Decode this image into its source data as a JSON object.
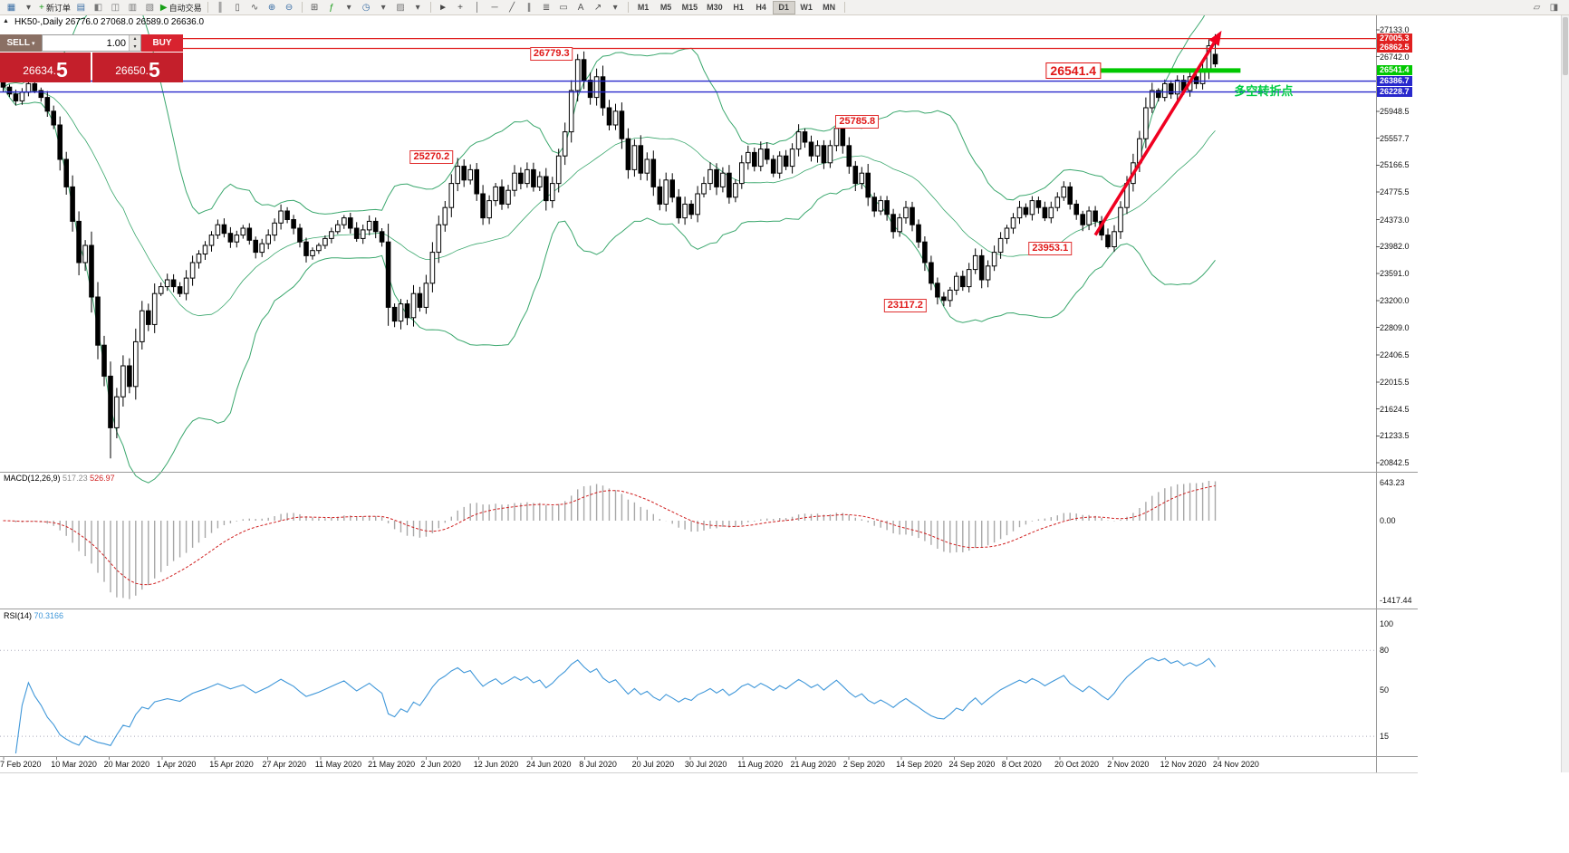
{
  "toolbar": {
    "timeframes": [
      "M1",
      "M5",
      "M15",
      "M30",
      "H1",
      "H4",
      "D1",
      "W1",
      "MN"
    ],
    "active_timeframe": "D1",
    "groups": [
      {
        "items": [
          {
            "name": "chart-window-icon",
            "glyph": "▦",
            "color": "#3a6ea5"
          },
          {
            "name": "chart-type-dropdown-icon",
            "glyph": "▾",
            "color": "#555"
          },
          {
            "name": "new-order-button",
            "glyph": "+",
            "color": "#1a9c1a",
            "label": "新订单"
          },
          {
            "name": "market-watch-icon",
            "glyph": "▤",
            "color": "#3a6ea5"
          },
          {
            "name": "data-window-icon",
            "glyph": "◧",
            "color": "#777"
          },
          {
            "name": "navigator-icon",
            "glyph": "◫",
            "color": "#777"
          },
          {
            "name": "terminal-icon",
            "glyph": "▥",
            "color": "#777"
          },
          {
            "name": "strategy-tester-icon",
            "glyph": "▧",
            "color": "#777"
          },
          {
            "name": "autotrade-button",
            "glyph": "▶",
            "color": "#18a018",
            "label": "自动交易"
          }
        ]
      },
      {
        "items": [
          {
            "name": "bar-chart-icon",
            "glyph": "║",
            "color": "#555"
          },
          {
            "name": "candlestick-icon",
            "glyph": "▯",
            "color": "#555"
          },
          {
            "name": "line-chart-icon",
            "glyph": "∿",
            "color": "#555"
          },
          {
            "name": "zoom-in-icon",
            "glyph": "⊕",
            "color": "#3a6ea5"
          },
          {
            "name": "zoom-out-icon",
            "glyph": "⊖",
            "color": "#3a6ea5"
          }
        ]
      },
      {
        "items": [
          {
            "name": "tile-windows-icon",
            "glyph": "⊞",
            "color": "#555"
          },
          {
            "name": "indicators-icon",
            "glyph": "ƒ",
            "color": "#1a9c1a"
          },
          {
            "name": "indicators-dropdown-icon",
            "glyph": "▾",
            "color": "#555"
          },
          {
            "name": "periods-icon",
            "glyph": "◷",
            "color": "#3a6ea5"
          },
          {
            "name": "periods-dropdown-icon",
            "glyph": "▾",
            "color": "#555"
          },
          {
            "name": "templates-icon",
            "glyph": "▨",
            "color": "#777"
          },
          {
            "name": "templates-dropdown-icon",
            "glyph": "▾",
            "color": "#555"
          }
        ]
      },
      {
        "items": [
          {
            "name": "cursor-icon",
            "glyph": "►",
            "color": "#444"
          },
          {
            "name": "crosshair-icon",
            "glyph": "+",
            "color": "#444"
          },
          {
            "name": "vertical-line-icon",
            "glyph": "│",
            "color": "#555"
          },
          {
            "name": "horizontal-line-icon",
            "glyph": "─",
            "color": "#555"
          },
          {
            "name": "trendline-icon",
            "glyph": "╱",
            "color": "#555"
          },
          {
            "name": "channel-icon",
            "glyph": "∥",
            "color": "#555"
          },
          {
            "name": "fibonacci-icon",
            "glyph": "≣",
            "color": "#555"
          },
          {
            "name": "shapes-icon",
            "glyph": "▭",
            "color": "#555"
          },
          {
            "name": "text-icon",
            "glyph": "A",
            "color": "#555"
          },
          {
            "name": "arrows-icon",
            "glyph": "↗",
            "color": "#555"
          },
          {
            "name": "arrows-dropdown-icon",
            "glyph": "▾",
            "color": "#555"
          }
        ]
      },
      {
        "tf": true,
        "items": []
      },
      {
        "align": "right",
        "items": [
          {
            "name": "chart-edit-icon",
            "glyph": "▱",
            "color": "#666"
          },
          {
            "name": "panel-layout-icon",
            "glyph": "◨",
            "color": "#666"
          }
        ]
      }
    ]
  },
  "trade_panel": {
    "sell_label": "SELL",
    "buy_label": "BUY",
    "volume": "1.00",
    "sell_caret": "▾",
    "spin_up": "▴",
    "spin_down": "▾",
    "sell_price_main": "26634.",
    "sell_price_big": "5",
    "buy_price_main": "26650.",
    "buy_price_big": "5"
  },
  "chart": {
    "symbol_label": "HK50-,Daily  26776.0 27068.0 26589.0 26636.0",
    "panel_toggle_glyph": "▲"
  },
  "chart_data": {
    "type": "candlestick",
    "symbol": "HK50",
    "period": "Daily",
    "quote": {
      "open": 26776.0,
      "high": 27068.0,
      "low": 26589.0,
      "close": 26636.0
    },
    "closes": [
      26300,
      26200,
      26100,
      26225,
      26350,
      26250,
      26150,
      25950,
      25750,
      25250,
      24850,
      24350,
      23750,
      24000,
      23250,
      22550,
      22100,
      21350,
      21800,
      22250,
      21950,
      22600,
      23050,
      22850,
      23300,
      23400,
      23500,
      23400,
      23300,
      23525,
      23750,
      23875,
      24000,
      24150,
      24300,
      24175,
      24050,
      24150,
      24250,
      24075,
      23900,
      24025,
      24150,
      24325,
      24500,
      24375,
      24250,
      24050,
      23850,
      23925,
      24000,
      24100,
      24200,
      24300,
      24400,
      24250,
      24100,
      24225,
      24350,
      24200,
      24050,
      23100,
      22900,
      23150,
      22950,
      23300,
      23100,
      23450,
      23900,
      24300,
      24550,
      24900,
      25150,
      24950,
      25100,
      24750,
      24400,
      24650,
      24850,
      24600,
      24800,
      25050,
      24900,
      25100,
      24850,
      25000,
      24650,
      24900,
      25300,
      25650,
      26250,
      26700,
      26400,
      26150,
      26450,
      26000,
      25750,
      25950,
      25550,
      25100,
      25450,
      25050,
      25250,
      24850,
      24600,
      24950,
      24700,
      24400,
      24600,
      24450,
      24750,
      24900,
      25100,
      24850,
      25050,
      24700,
      24900,
      25200,
      25350,
      25150,
      25400,
      25250,
      25050,
      25300,
      25150,
      25400,
      25650,
      25500,
      25300,
      25450,
      25200,
      25450,
      25700,
      25450,
      25150,
      24900,
      25050,
      24700,
      24500,
      24650,
      24450,
      24200,
      24400,
      24550,
      24300,
      24050,
      23750,
      23450,
      23250,
      23200,
      23350,
      23550,
      23400,
      23650,
      23850,
      23500,
      23700,
      23900,
      24100,
      24250,
      24400,
      24550,
      24450,
      24650,
      24550,
      24400,
      24550,
      24700,
      24850,
      24600,
      24450,
      24300,
      24500,
      24350,
      24150,
      23980,
      24200,
      24550,
      24900,
      25200,
      25550,
      26000,
      26250,
      26150,
      26350,
      26200,
      26400,
      26250,
      26450,
      26350,
      26550,
      26900,
      26636
    ],
    "wick_overrides": {
      "17": {
        "low": 20905
      },
      "91": {
        "high": 26779.3
      },
      "132": {
        "high": 25785.8
      },
      "149": {
        "low": 23117.2
      },
      "175": {
        "low": 23953.1
      },
      "191": {
        "high": 26995
      }
    },
    "price_axis": {
      "labels": [
        "27133.0",
        "26742.0",
        "25948.5",
        "25557.7",
        "25166.5",
        "24775.5",
        "24373.0",
        "23982.0",
        "23591.0",
        "23200.0",
        "22809.0",
        "22406.5",
        "22015.5",
        "21624.5",
        "21233.5",
        "20842.5"
      ]
    },
    "levels": [
      {
        "label": "27005.3",
        "price": 27005.3,
        "color": "#e02020",
        "style": "line",
        "width": 1.2
      },
      {
        "label": "26862.5",
        "price": 26862.5,
        "color": "#e02020",
        "style": "line",
        "width": 1.2
      },
      {
        "label": "26541.4",
        "price": 26541.4,
        "color": "#00c800",
        "style": "segment",
        "from_index": 174,
        "to_index": 196.5,
        "width": 5
      },
      {
        "label": "26386.7",
        "price": 26386.7,
        "color": "#2828cc",
        "style": "line",
        "width": 1.4
      },
      {
        "label": "26228.7",
        "price": 26228.7,
        "color": "#2828cc",
        "style": "line",
        "width": 1.4
      }
    ],
    "annotations": [
      {
        "text": "26779.3",
        "price": 26779.3,
        "index": 91,
        "side": "left"
      },
      {
        "text": "25270.2",
        "price": 25270.2,
        "index": 72,
        "side": "left"
      },
      {
        "text": "25785.8",
        "price": 25785.8,
        "index": 131,
        "side": "right"
      },
      {
        "text": "23953.1",
        "price": 23953.1,
        "index": 170,
        "side": "left"
      },
      {
        "text": "23117.2",
        "price": 23117.2,
        "index": 147,
        "side": "left"
      }
    ],
    "level_callout": {
      "text": "26541.4",
      "price": 26541.4,
      "index": 175,
      "side": "left"
    },
    "trend_arrow": {
      "from": {
        "index": 173,
        "price": 24150
      },
      "to": {
        "index": 193,
        "price": 27120
      },
      "color": "#f00020",
      "width": 3.5
    },
    "note": {
      "text": "多空转折点",
      "index": 195,
      "price": 26270,
      "color": "#00cc44"
    },
    "macd": {
      "label": "MACD(12,26,9)",
      "value_main": "517.23",
      "value_signal": "526.97",
      "axis_labels": [
        "643.23",
        "0.00",
        "-1417.44"
      ],
      "histogram_color": "#a8a8a8",
      "signal_color": "#d02020"
    },
    "rsi": {
      "label": "RSI(14)",
      "value": "70.3166",
      "axis_labels": [
        "100",
        "80",
        "50",
        "15"
      ],
      "level_lines": [
        80,
        15
      ],
      "line_color": "#3f97d9"
    },
    "dates": [
      "7 Feb 2020",
      "10 Mar 2020",
      "20 Mar 2020",
      "1 Apr 2020",
      "15 Apr 2020",
      "27 Apr 2020",
      "11 May 2020",
      "21 May 2020",
      "2 Jun 2020",
      "12 Jun 2020",
      "24 Jun 2020",
      "8 Jul 2020",
      "20 Jul 2020",
      "30 Jul 2020",
      "11 Aug 2020",
      "21 Aug 2020",
      "2 Sep 2020",
      "14 Sep 2020",
      "24 Sep 2020",
      "8 Oct 2020",
      "20 Oct 2020",
      "2 Nov 2020",
      "12 Nov 2020",
      "24 Nov 2020"
    ],
    "band_color": "#3aa76d"
  }
}
